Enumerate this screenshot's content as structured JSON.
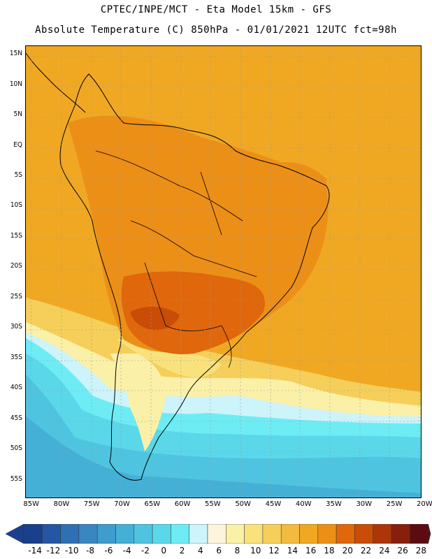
{
  "header": {
    "line1": "CPTEC/INPE/MCT -  Eta Model 15km - GFS",
    "line2": "Absolute Temperature (C) 850hPa - 01/01/2021 12UTC fct=98h"
  },
  "map": {
    "lat_labels": [
      "15N",
      "10N",
      "5N",
      "EQ",
      "5S",
      "10S",
      "15S",
      "20S",
      "25S",
      "30S",
      "35S",
      "40S",
      "45S",
      "50S",
      "55S"
    ],
    "lon_labels": [
      "85W",
      "80W",
      "75W",
      "70W",
      "65W",
      "60W",
      "55W",
      "50W",
      "45W",
      "40W",
      "35W",
      "30W",
      "25W",
      "20W"
    ],
    "lat_values": [
      15,
      10,
      5,
      0,
      -5,
      -10,
      -15,
      -20,
      -25,
      -30,
      -35,
      -40,
      -45,
      -50,
      -55
    ],
    "lon_values": [
      -85,
      -80,
      -75,
      -70,
      -65,
      -60,
      -55,
      -50,
      -45,
      -40,
      -35,
      -30,
      -25,
      -20
    ],
    "lat_range": [
      -58,
      16.5
    ],
    "lon_range": [
      -86,
      -20.5
    ],
    "grid": "dotted"
  },
  "colorbar": {
    "labels": [
      "-14",
      "-12",
      "-10",
      "-8",
      "-6",
      "-4",
      "-2",
      "0",
      "2",
      "4",
      "6",
      "8",
      "10",
      "12",
      "14",
      "16",
      "18",
      "20",
      "22",
      "24",
      "26",
      "28"
    ],
    "colors": [
      "#1a3f8c",
      "#2456a4",
      "#2f70b4",
      "#3a86c0",
      "#3f9ccc",
      "#45b0d6",
      "#4fc4e0",
      "#5ad8ea",
      "#6eecf4",
      "#cdf3fb",
      "#fdf4de",
      "#fbf0a8",
      "#f9e27c",
      "#f5cf5a",
      "#f2bb40",
      "#f0a823",
      "#ec8f17",
      "#e0670b",
      "#c94d07",
      "#ac360a",
      "#86200c",
      "#5c0c10"
    ]
  }
}
